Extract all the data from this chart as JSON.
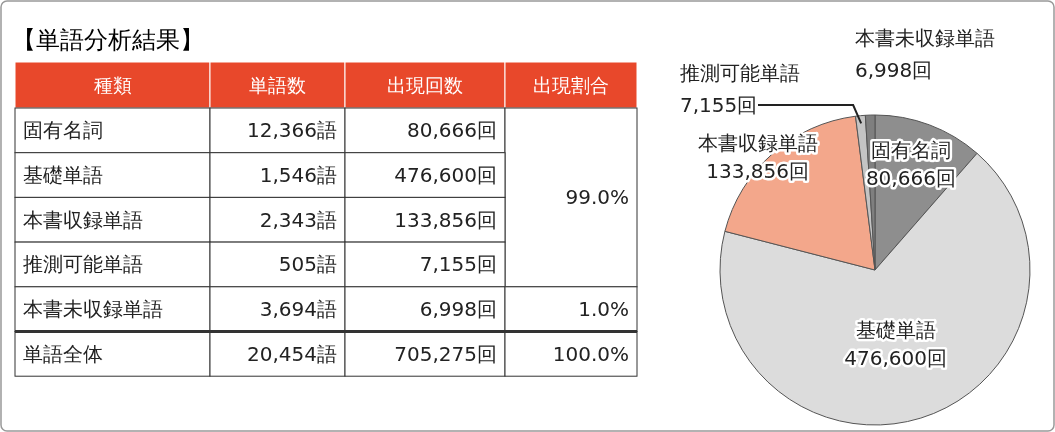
{
  "chart_data": [
    {
      "type": "other",
      "title": "【単語分析結果】",
      "categories": [
        "種類",
        "単語数",
        "出現回数",
        "出現割合"
      ],
      "cell_labels": [
        [
          "固有名詞",
          "12,366語",
          "80,666回",
          "99.0%"
        ],
        [
          "基礎単語",
          "1,546語",
          "476,600回",
          null
        ],
        [
          "本書収録単語",
          "2,343語",
          "133,856回",
          null
        ],
        [
          "推測可能単語",
          "505語",
          "7,155回",
          null
        ],
        [
          "本書未収録単語",
          "3,694語",
          "6,998回",
          "1.0%"
        ],
        [
          "単語全体",
          "20,454語",
          "705,275回",
          "100.0%"
        ]
      ],
      "color": "#e8482b"
    },
    {
      "type": "pie",
      "categories": [
        "固有名詞",
        "基礎単語",
        "本書収録単語",
        "推測可能単語",
        "本書未収録単語"
      ],
      "values": [
        80666,
        476600,
        133856,
        7155,
        6998
      ],
      "colors": [
        "#8e8e8e",
        "#dcdcdc",
        "#f3a78b",
        "#c4c4c4",
        "#7f7f7f"
      ],
      "value_labels": [
        "80,666回",
        "476,600回",
        "133,856回",
        "7,155回",
        "6,998回"
      ]
    }
  ]
}
